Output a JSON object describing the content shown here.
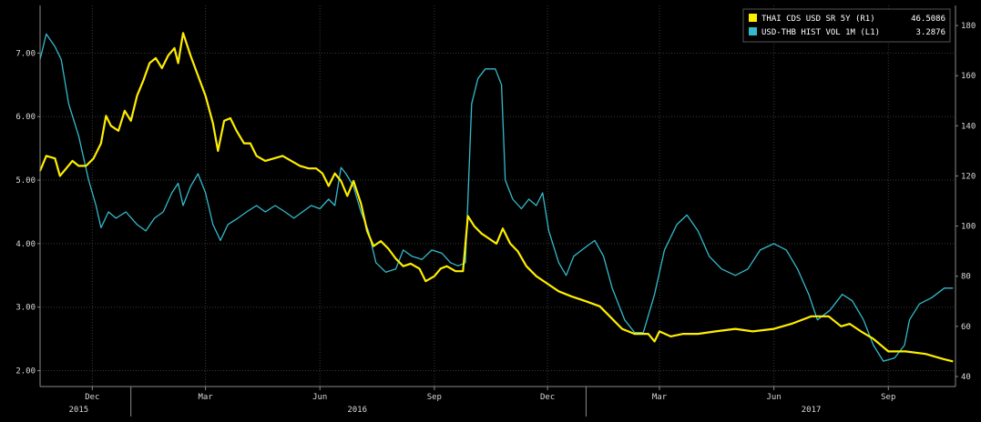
{
  "chart_data": {
    "type": "line",
    "title": "",
    "legend": {
      "placement": "top-right",
      "entries": [
        {
          "label": "THAI CDS USD SR 5Y (R1)",
          "value": "46.5086",
          "color": "#ffee00"
        },
        {
          "label": "USD-THB HIST VOL 1M (L1)",
          "value": "3.2876",
          "color": "#33bbcc"
        }
      ]
    },
    "axes": {
      "left": {
        "min": 1.75,
        "max": 7.75,
        "ticks": [
          "2.00",
          "3.00",
          "4.00",
          "5.00",
          "6.00",
          "7.00"
        ]
      },
      "right": {
        "min": 36,
        "max": 188,
        "ticks": [
          "40",
          "60",
          "80",
          "100",
          "120",
          "140",
          "160",
          "180"
        ]
      },
      "x": {
        "min": "2015-10-20",
        "max": "2017-10-25",
        "month_ticks": [
          {
            "date": "2015-12-01",
            "label": "Dec"
          },
          {
            "date": "2016-03-01",
            "label": "Mar"
          },
          {
            "date": "2016-06-01",
            "label": "Jun"
          },
          {
            "date": "2016-09-01",
            "label": "Sep"
          },
          {
            "date": "2016-12-01",
            "label": "Dec"
          },
          {
            "date": "2017-03-01",
            "label": "Mar"
          },
          {
            "date": "2017-06-01",
            "label": "Jun"
          },
          {
            "date": "2017-09-01",
            "label": "Sep"
          }
        ],
        "year_labels": [
          {
            "date": "2015-11-20",
            "label": "2015"
          },
          {
            "date": "2016-07-01",
            "label": "2016"
          },
          {
            "date": "2017-07-01",
            "label": "2017"
          }
        ],
        "year_separators": [
          "2016-01-01",
          "2017-01-01"
        ]
      }
    },
    "grid": true,
    "series": [
      {
        "name": "THAI CDS USD SR 5Y (R1)",
        "axis": "right",
        "color": "#ffee00",
        "points": [
          [
            "2015-10-20",
            122
          ],
          [
            "2015-10-25",
            128
          ],
          [
            "2015-11-01",
            127
          ],
          [
            "2015-11-05",
            120
          ],
          [
            "2015-11-10",
            123
          ],
          [
            "2015-11-15",
            126
          ],
          [
            "2015-11-20",
            124
          ],
          [
            "2015-11-26",
            124
          ],
          [
            "2015-12-02",
            127
          ],
          [
            "2015-12-08",
            133
          ],
          [
            "2015-12-12",
            144
          ],
          [
            "2015-12-16",
            140
          ],
          [
            "2015-12-22",
            138
          ],
          [
            "2015-12-27",
            146
          ],
          [
            "2016-01-01",
            142
          ],
          [
            "2016-01-06",
            152
          ],
          [
            "2016-01-11",
            158
          ],
          [
            "2016-01-16",
            165
          ],
          [
            "2016-01-21",
            167
          ],
          [
            "2016-01-26",
            163
          ],
          [
            "2016-01-31",
            168
          ],
          [
            "2016-02-05",
            171
          ],
          [
            "2016-02-08",
            165
          ],
          [
            "2016-02-12",
            177
          ],
          [
            "2016-02-18",
            168
          ],
          [
            "2016-02-24",
            160
          ],
          [
            "2016-03-01",
            152
          ],
          [
            "2016-03-07",
            141
          ],
          [
            "2016-03-11",
            130
          ],
          [
            "2016-03-16",
            142
          ],
          [
            "2016-03-21",
            143
          ],
          [
            "2016-03-26",
            138
          ],
          [
            "2016-04-01",
            133
          ],
          [
            "2016-04-06",
            133
          ],
          [
            "2016-04-11",
            128
          ],
          [
            "2016-04-18",
            126
          ],
          [
            "2016-04-25",
            127
          ],
          [
            "2016-05-02",
            128
          ],
          [
            "2016-05-09",
            126
          ],
          [
            "2016-05-16",
            124
          ],
          [
            "2016-05-23",
            123
          ],
          [
            "2016-05-29",
            123
          ],
          [
            "2016-06-03",
            121
          ],
          [
            "2016-06-08",
            116
          ],
          [
            "2016-06-13",
            121
          ],
          [
            "2016-06-18",
            118
          ],
          [
            "2016-06-23",
            112
          ],
          [
            "2016-06-28",
            118
          ],
          [
            "2016-07-04",
            109
          ],
          [
            "2016-07-09",
            98
          ],
          [
            "2016-07-14",
            92
          ],
          [
            "2016-07-20",
            94
          ],
          [
            "2016-07-26",
            91
          ],
          [
            "2016-08-01",
            87
          ],
          [
            "2016-08-07",
            84
          ],
          [
            "2016-08-13",
            85
          ],
          [
            "2016-08-20",
            83
          ],
          [
            "2016-08-25",
            78
          ],
          [
            "2016-09-01",
            80
          ],
          [
            "2016-09-06",
            83
          ],
          [
            "2016-09-11",
            84
          ],
          [
            "2016-09-18",
            82
          ],
          [
            "2016-09-24",
            82
          ],
          [
            "2016-09-28",
            104
          ],
          [
            "2016-10-03",
            100
          ],
          [
            "2016-10-09",
            97
          ],
          [
            "2016-10-15",
            95
          ],
          [
            "2016-10-21",
            93
          ],
          [
            "2016-10-26",
            99
          ],
          [
            "2016-11-01",
            93
          ],
          [
            "2016-11-07",
            90
          ],
          [
            "2016-11-14",
            84
          ],
          [
            "2016-11-22",
            80
          ],
          [
            "2016-12-01",
            77
          ],
          [
            "2016-12-10",
            74
          ],
          [
            "2016-12-20",
            72
          ],
          [
            "2017-01-01",
            70
          ],
          [
            "2017-01-12",
            68
          ],
          [
            "2017-01-20",
            64
          ],
          [
            "2017-01-30",
            59
          ],
          [
            "2017-02-09",
            57
          ],
          [
            "2017-02-20",
            57
          ],
          [
            "2017-02-25",
            54
          ],
          [
            "2017-03-01",
            58
          ],
          [
            "2017-03-10",
            56
          ],
          [
            "2017-03-20",
            57
          ],
          [
            "2017-04-01",
            57
          ],
          [
            "2017-04-15",
            58
          ],
          [
            "2017-05-01",
            59
          ],
          [
            "2017-05-15",
            58
          ],
          [
            "2017-06-01",
            59
          ],
          [
            "2017-06-15",
            61
          ],
          [
            "2017-07-01",
            64
          ],
          [
            "2017-07-15",
            64
          ],
          [
            "2017-07-25",
            60
          ],
          [
            "2017-08-01",
            61
          ],
          [
            "2017-08-10",
            58
          ],
          [
            "2017-08-20",
            55
          ],
          [
            "2017-09-01",
            50
          ],
          [
            "2017-09-15",
            50
          ],
          [
            "2017-10-01",
            49
          ],
          [
            "2017-10-15",
            47
          ],
          [
            "2017-10-23",
            46
          ]
        ]
      },
      {
        "name": "USD-THB HIST VOL 1M (L1)",
        "axis": "left",
        "color": "#33bbcc",
        "points": [
          [
            "2015-10-20",
            6.9
          ],
          [
            "2015-10-25",
            7.3
          ],
          [
            "2015-11-01",
            7.1
          ],
          [
            "2015-11-06",
            6.9
          ],
          [
            "2015-11-12",
            6.2
          ],
          [
            "2015-11-20",
            5.7
          ],
          [
            "2015-11-28",
            5.0
          ],
          [
            "2015-12-04",
            4.6
          ],
          [
            "2015-12-08",
            4.25
          ],
          [
            "2015-12-14",
            4.5
          ],
          [
            "2015-12-20",
            4.4
          ],
          [
            "2015-12-28",
            4.5
          ],
          [
            "2016-01-06",
            4.3
          ],
          [
            "2016-01-13",
            4.2
          ],
          [
            "2016-01-20",
            4.4
          ],
          [
            "2016-01-27",
            4.5
          ],
          [
            "2016-02-03",
            4.8
          ],
          [
            "2016-02-08",
            4.95
          ],
          [
            "2016-02-12",
            4.6
          ],
          [
            "2016-02-18",
            4.9
          ],
          [
            "2016-02-24",
            5.1
          ],
          [
            "2016-03-01",
            4.8
          ],
          [
            "2016-03-07",
            4.3
          ],
          [
            "2016-03-13",
            4.05
          ],
          [
            "2016-03-19",
            4.3
          ],
          [
            "2016-03-27",
            4.4
          ],
          [
            "2016-04-03",
            4.5
          ],
          [
            "2016-04-11",
            4.6
          ],
          [
            "2016-04-18",
            4.5
          ],
          [
            "2016-04-26",
            4.6
          ],
          [
            "2016-05-04",
            4.5
          ],
          [
            "2016-05-11",
            4.4
          ],
          [
            "2016-05-18",
            4.5
          ],
          [
            "2016-05-25",
            4.6
          ],
          [
            "2016-06-01",
            4.55
          ],
          [
            "2016-06-08",
            4.7
          ],
          [
            "2016-06-13",
            4.6
          ],
          [
            "2016-06-18",
            5.2
          ],
          [
            "2016-06-22",
            5.1
          ],
          [
            "2016-06-28",
            4.9
          ],
          [
            "2016-07-04",
            4.5
          ],
          [
            "2016-07-10",
            4.2
          ],
          [
            "2016-07-16",
            3.7
          ],
          [
            "2016-07-24",
            3.55
          ],
          [
            "2016-08-01",
            3.6
          ],
          [
            "2016-08-07",
            3.9
          ],
          [
            "2016-08-14",
            3.8
          ],
          [
            "2016-08-22",
            3.75
          ],
          [
            "2016-08-30",
            3.9
          ],
          [
            "2016-09-07",
            3.85
          ],
          [
            "2016-09-14",
            3.7
          ],
          [
            "2016-09-20",
            3.65
          ],
          [
            "2016-09-26",
            3.7
          ],
          [
            "2016-10-01",
            6.2
          ],
          [
            "2016-10-06",
            6.6
          ],
          [
            "2016-10-12",
            6.75
          ],
          [
            "2016-10-20",
            6.75
          ],
          [
            "2016-10-25",
            6.5
          ],
          [
            "2016-10-28",
            5.0
          ],
          [
            "2016-11-03",
            4.7
          ],
          [
            "2016-11-10",
            4.55
          ],
          [
            "2016-11-16",
            4.7
          ],
          [
            "2016-11-22",
            4.6
          ],
          [
            "2016-11-27",
            4.8
          ],
          [
            "2016-12-02",
            4.2
          ],
          [
            "2016-12-10",
            3.7
          ],
          [
            "2016-12-16",
            3.5
          ],
          [
            "2016-12-22",
            3.8
          ],
          [
            "2017-01-01",
            3.95
          ],
          [
            "2017-01-08",
            4.05
          ],
          [
            "2017-01-15",
            3.8
          ],
          [
            "2017-01-22",
            3.3
          ],
          [
            "2017-02-01",
            2.8
          ],
          [
            "2017-02-09",
            2.6
          ],
          [
            "2017-02-16",
            2.6
          ],
          [
            "2017-02-25",
            3.2
          ],
          [
            "2017-03-05",
            3.9
          ],
          [
            "2017-03-15",
            4.3
          ],
          [
            "2017-03-23",
            4.45
          ],
          [
            "2017-04-01",
            4.2
          ],
          [
            "2017-04-10",
            3.8
          ],
          [
            "2017-04-20",
            3.6
          ],
          [
            "2017-05-01",
            3.5
          ],
          [
            "2017-05-11",
            3.6
          ],
          [
            "2017-05-21",
            3.9
          ],
          [
            "2017-06-01",
            4.0
          ],
          [
            "2017-06-11",
            3.9
          ],
          [
            "2017-06-20",
            3.6
          ],
          [
            "2017-06-29",
            3.2
          ],
          [
            "2017-07-06",
            2.8
          ],
          [
            "2017-07-16",
            2.95
          ],
          [
            "2017-07-26",
            3.2
          ],
          [
            "2017-08-03",
            3.1
          ],
          [
            "2017-08-12",
            2.8
          ],
          [
            "2017-08-20",
            2.4
          ],
          [
            "2017-08-28",
            2.15
          ],
          [
            "2017-09-06",
            2.2
          ],
          [
            "2017-09-14",
            2.4
          ],
          [
            "2017-09-18",
            2.8
          ],
          [
            "2017-09-26",
            3.05
          ],
          [
            "2017-10-06",
            3.15
          ],
          [
            "2017-10-16",
            3.3
          ],
          [
            "2017-10-23",
            3.3
          ]
        ]
      }
    ]
  }
}
